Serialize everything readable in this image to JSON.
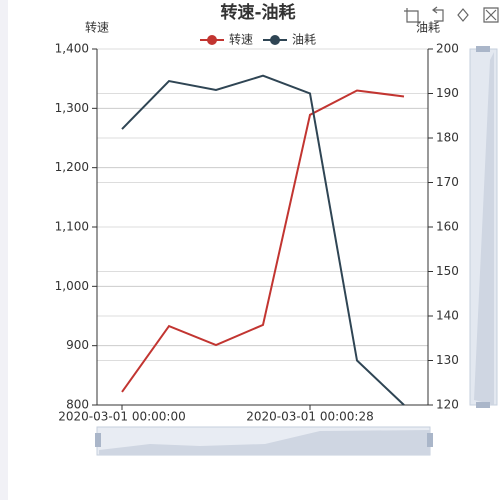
{
  "chart_data": {
    "type": "line",
    "title": "转速-油耗",
    "categories": [
      "2020-03-01 00:00:00",
      null,
      null,
      null,
      "2020-03-01 00:00:28",
      null,
      null
    ],
    "ylabel": "转速",
    "y2label": "油耗",
    "ylim": [
      800,
      1400
    ],
    "yticks": [
      800,
      900,
      {
        "value": 1000,
        "label": "1,000"
      },
      {
        "value": 1100,
        "label": "1,100"
      },
      {
        "value": 1200,
        "label": "1,200"
      },
      {
        "value": 1300,
        "label": "1,300"
      },
      {
        "value": 1400,
        "label": "1,400"
      }
    ],
    "y2lim": [
      120,
      200
    ],
    "y2ticks": [
      120,
      130,
      140,
      150,
      160,
      170,
      180,
      190,
      200
    ],
    "grid": true,
    "legend": "top",
    "series": [
      {
        "name": "转速",
        "color": "#c23531",
        "values": [
          822,
          933,
          901,
          935,
          1289,
          1330,
          1320
        ]
      },
      {
        "name": "油耗",
        "color": "#2f4554",
        "axis": "y2",
        "values": [
          182,
          192.8,
          190.8,
          194,
          190,
          130,
          120
        ]
      }
    ]
  }
}
